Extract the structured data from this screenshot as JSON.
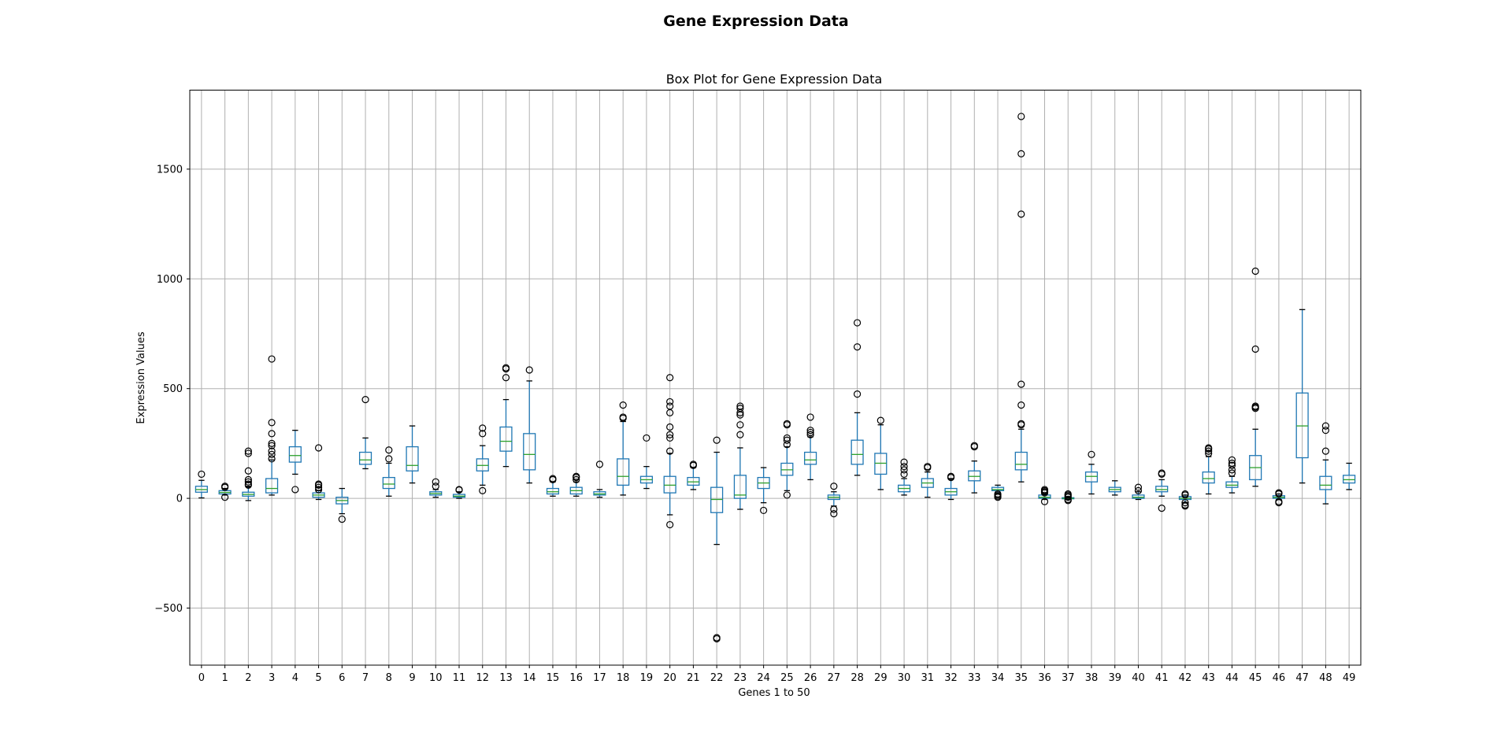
{
  "figure": {
    "suptitle": "Gene Expression Data"
  },
  "chart_data": {
    "type": "box",
    "title": "Box Plot for Gene Expression Data",
    "xlabel": "Genes 1 to 50",
    "ylabel": "Expression Values",
    "ylim": [
      -760,
      1860
    ],
    "yticks": [
      -500,
      0,
      500,
      1000,
      1500
    ],
    "ytick_labels": [
      "−500",
      "0",
      "500",
      "1000",
      "1500"
    ],
    "grid": true,
    "colors": {
      "box": "#1f77b4",
      "median": "#2ca02c",
      "whisker": "#1f77b4",
      "cap": "#000000",
      "flier": "#000000",
      "grid": "#b0b0b0"
    },
    "categories": [
      "0",
      "1",
      "2",
      "3",
      "4",
      "5",
      "6",
      "7",
      "8",
      "9",
      "10",
      "11",
      "12",
      "13",
      "14",
      "15",
      "16",
      "17",
      "18",
      "19",
      "20",
      "21",
      "22",
      "23",
      "24",
      "25",
      "26",
      "27",
      "28",
      "29",
      "30",
      "31",
      "32",
      "33",
      "34",
      "35",
      "36",
      "37",
      "38",
      "39",
      "40",
      "41",
      "42",
      "43",
      "44",
      "45",
      "46",
      "47",
      "48",
      "49"
    ],
    "boxes": [
      {
        "whislo": 2,
        "q1": 28,
        "med": 40,
        "q3": 55,
        "whishi": 82,
        "fliers": [
          110
        ]
      },
      {
        "whislo": 15,
        "q1": 20,
        "med": 27,
        "q3": 35,
        "whishi": 45,
        "fliers": [
          5,
          50,
          55
        ]
      },
      {
        "whislo": -10,
        "q1": 10,
        "med": 18,
        "q3": 28,
        "whishi": 55,
        "fliers": [
          60,
          65,
          75,
          85,
          125,
          205,
          215
        ]
      },
      {
        "whislo": 15,
        "q1": 25,
        "med": 45,
        "q3": 90,
        "whishi": 175,
        "fliers": [
          180,
          200,
          215,
          240,
          250,
          295,
          345,
          635
        ]
      },
      {
        "whislo": 110,
        "q1": 165,
        "med": 195,
        "q3": 235,
        "whishi": 310,
        "fliers": [
          40
        ]
      },
      {
        "whislo": -5,
        "q1": 5,
        "med": 15,
        "q3": 25,
        "whishi": 35,
        "fliers": [
          40,
          50,
          60,
          65,
          230
        ]
      },
      {
        "whislo": -70,
        "q1": -25,
        "med": -10,
        "q3": 5,
        "whishi": 45,
        "fliers": [
          -95
        ]
      },
      {
        "whislo": 135,
        "q1": 155,
        "med": 175,
        "q3": 210,
        "whishi": 275,
        "fliers": [
          450
        ]
      },
      {
        "whislo": 10,
        "q1": 45,
        "med": 65,
        "q3": 95,
        "whishi": 160,
        "fliers": [
          180,
          220
        ]
      },
      {
        "whislo": 70,
        "q1": 125,
        "med": 150,
        "q3": 235,
        "whishi": 330,
        "fliers": []
      },
      {
        "whislo": 5,
        "q1": 15,
        "med": 22,
        "q3": 30,
        "whishi": 40,
        "fliers": [
          55,
          75
        ]
      },
      {
        "whislo": 0,
        "q1": 5,
        "med": 10,
        "q3": 18,
        "whishi": 30,
        "fliers": [
          38,
          40
        ]
      },
      {
        "whislo": 60,
        "q1": 125,
        "med": 150,
        "q3": 180,
        "whishi": 240,
        "fliers": [
          35,
          295,
          320
        ]
      },
      {
        "whislo": 145,
        "q1": 215,
        "med": 260,
        "q3": 325,
        "whishi": 450,
        "fliers": [
          550,
          590,
          595
        ]
      },
      {
        "whislo": 70,
        "q1": 130,
        "med": 200,
        "q3": 295,
        "whishi": 535,
        "fliers": [
          585
        ]
      },
      {
        "whislo": 10,
        "q1": 20,
        "med": 30,
        "q3": 45,
        "whishi": 75,
        "fliers": [
          85,
          90
        ]
      },
      {
        "whislo": 10,
        "q1": 20,
        "med": 35,
        "q3": 50,
        "whishi": 75,
        "fliers": [
          85,
          95,
          100
        ]
      },
      {
        "whislo": 5,
        "q1": 15,
        "med": 20,
        "q3": 30,
        "whishi": 40,
        "fliers": [
          155
        ]
      },
      {
        "whislo": 15,
        "q1": 60,
        "med": 100,
        "q3": 180,
        "whishi": 350,
        "fliers": [
          365,
          370,
          425
        ]
      },
      {
        "whislo": 45,
        "q1": 70,
        "med": 85,
        "q3": 100,
        "whishi": 145,
        "fliers": [
          275
        ]
      },
      {
        "whislo": -75,
        "q1": 25,
        "med": 60,
        "q3": 100,
        "whishi": 205,
        "fliers": [
          -120,
          215,
          275,
          290,
          325,
          390,
          420,
          440,
          550
        ]
      },
      {
        "whislo": 40,
        "q1": 60,
        "med": 75,
        "q3": 95,
        "whishi": 140,
        "fliers": [
          150,
          155
        ]
      },
      {
        "whislo": -210,
        "q1": -65,
        "med": -5,
        "q3": 50,
        "whishi": 210,
        "fliers": [
          265,
          -635,
          -640
        ]
      },
      {
        "whislo": -50,
        "q1": 0,
        "med": 15,
        "q3": 105,
        "whishi": 230,
        "fliers": [
          290,
          335,
          380,
          390,
          410,
          420
        ]
      },
      {
        "whislo": -20,
        "q1": 45,
        "med": 70,
        "q3": 95,
        "whishi": 140,
        "fliers": [
          -55
        ]
      },
      {
        "whislo": 35,
        "q1": 105,
        "med": 130,
        "q3": 160,
        "whishi": 235,
        "fliers": [
          15,
          245,
          265,
          275,
          335,
          340
        ]
      },
      {
        "whislo": 85,
        "q1": 155,
        "med": 175,
        "q3": 210,
        "whishi": 280,
        "fliers": [
          290,
          300,
          310,
          370
        ]
      },
      {
        "whislo": -35,
        "q1": -5,
        "med": 5,
        "q3": 15,
        "whishi": 30,
        "fliers": [
          -70,
          -50,
          55
        ]
      },
      {
        "whislo": 105,
        "q1": 155,
        "med": 200,
        "q3": 265,
        "whishi": 390,
        "fliers": [
          475,
          690,
          800
        ]
      },
      {
        "whislo": 40,
        "q1": 110,
        "med": 160,
        "q3": 205,
        "whishi": 335,
        "fliers": [
          355
        ]
      },
      {
        "whislo": 15,
        "q1": 30,
        "med": 45,
        "q3": 60,
        "whishi": 90,
        "fliers": [
          110,
          130,
          145,
          165
        ]
      },
      {
        "whislo": 5,
        "q1": 50,
        "med": 70,
        "q3": 90,
        "whishi": 120,
        "fliers": [
          140,
          145
        ]
      },
      {
        "whislo": -5,
        "q1": 15,
        "med": 30,
        "q3": 45,
        "whishi": 90,
        "fliers": [
          95,
          100
        ]
      },
      {
        "whislo": 25,
        "q1": 80,
        "med": 100,
        "q3": 125,
        "whishi": 170,
        "fliers": [
          235,
          240
        ]
      },
      {
        "whislo": 20,
        "q1": 35,
        "med": 40,
        "q3": 50,
        "whishi": 60,
        "fliers": [
          5,
          10,
          15,
          20
        ]
      },
      {
        "whislo": 75,
        "q1": 130,
        "med": 155,
        "q3": 210,
        "whishi": 315,
        "fliers": [
          335,
          340,
          425,
          520,
          1295,
          1570,
          1740
        ]
      },
      {
        "whislo": -5,
        "q1": 0,
        "med": 5,
        "q3": 15,
        "whishi": 20,
        "fliers": [
          -15,
          25,
          30,
          35,
          40
        ]
      },
      {
        "whislo": -5,
        "q1": -2,
        "med": 0,
        "q3": 3,
        "whishi": 5,
        "fliers": [
          -10,
          -5,
          5,
          10,
          15,
          20
        ]
      },
      {
        "whislo": 20,
        "q1": 75,
        "med": 100,
        "q3": 120,
        "whishi": 155,
        "fliers": [
          200
        ]
      },
      {
        "whislo": 15,
        "q1": 30,
        "med": 40,
        "q3": 50,
        "whishi": 80,
        "fliers": []
      },
      {
        "whislo": -5,
        "q1": 0,
        "med": 5,
        "q3": 15,
        "whishi": 30,
        "fliers": [
          35,
          50
        ]
      },
      {
        "whislo": 10,
        "q1": 30,
        "med": 40,
        "q3": 55,
        "whishi": 85,
        "fliers": [
          -45,
          110,
          115
        ]
      },
      {
        "whislo": -20,
        "q1": -5,
        "med": 0,
        "q3": 8,
        "whishi": 15,
        "fliers": [
          -35,
          -30,
          -20,
          15,
          20
        ]
      },
      {
        "whislo": 20,
        "q1": 70,
        "med": 90,
        "q3": 120,
        "whishi": 190,
        "fliers": [
          205,
          215,
          225,
          230
        ]
      },
      {
        "whislo": 25,
        "q1": 50,
        "med": 60,
        "q3": 75,
        "whishi": 100,
        "fliers": [
          115,
          130,
          150,
          160,
          175
        ]
      },
      {
        "whislo": 55,
        "q1": 85,
        "med": 140,
        "q3": 195,
        "whishi": 315,
        "fliers": [
          410,
          415,
          420,
          680,
          1035
        ]
      },
      {
        "whislo": -5,
        "q1": 0,
        "med": 5,
        "q3": 12,
        "whishi": 20,
        "fliers": [
          -20,
          -15,
          20,
          25
        ]
      },
      {
        "whislo": 70,
        "q1": 185,
        "med": 330,
        "q3": 480,
        "whishi": 860,
        "fliers": []
      },
      {
        "whislo": -25,
        "q1": 40,
        "med": 60,
        "q3": 100,
        "whishi": 175,
        "fliers": [
          215,
          310,
          330
        ]
      },
      {
        "whislo": 40,
        "q1": 70,
        "med": 85,
        "q3": 105,
        "whishi": 160,
        "fliers": []
      }
    ]
  }
}
